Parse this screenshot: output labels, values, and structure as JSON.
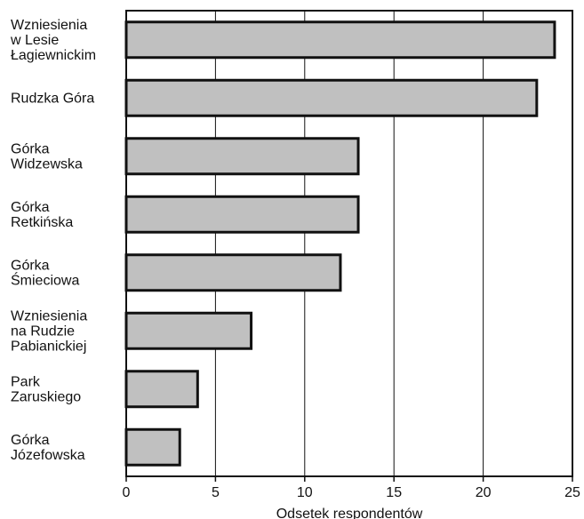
{
  "chart_data": {
    "type": "bar",
    "orientation": "horizontal",
    "categories": [
      [
        "Wzniesienia",
        "w Lesie",
        "Łagiewnickim"
      ],
      [
        "Rudzka Góra"
      ],
      [
        "Górka",
        "Widzewska"
      ],
      [
        "Górka",
        "Retkińska"
      ],
      [
        "Górka",
        "Śmieciowa"
      ],
      [
        "Wzniesienia",
        "na Rudzie",
        "Pabianickiej"
      ],
      [
        "Park",
        "Zaruskiego"
      ],
      [
        "Górka",
        "Józefowska"
      ]
    ],
    "values": [
      24,
      23,
      13,
      13,
      12,
      7,
      4,
      3
    ],
    "title": "",
    "xlabel": "Odsetek respondentów",
    "ylabel": "",
    "xlim": [
      0,
      25
    ],
    "xticks": [
      "0",
      "5",
      "10",
      "15",
      "20",
      "25"
    ],
    "grid": "vertical",
    "colors": {
      "bar_fill": "#c0c0c0",
      "bar_stroke": "#111111",
      "grid": "#111111",
      "frame": "#111111",
      "text": "#111111",
      "background": "#ffffff"
    }
  }
}
